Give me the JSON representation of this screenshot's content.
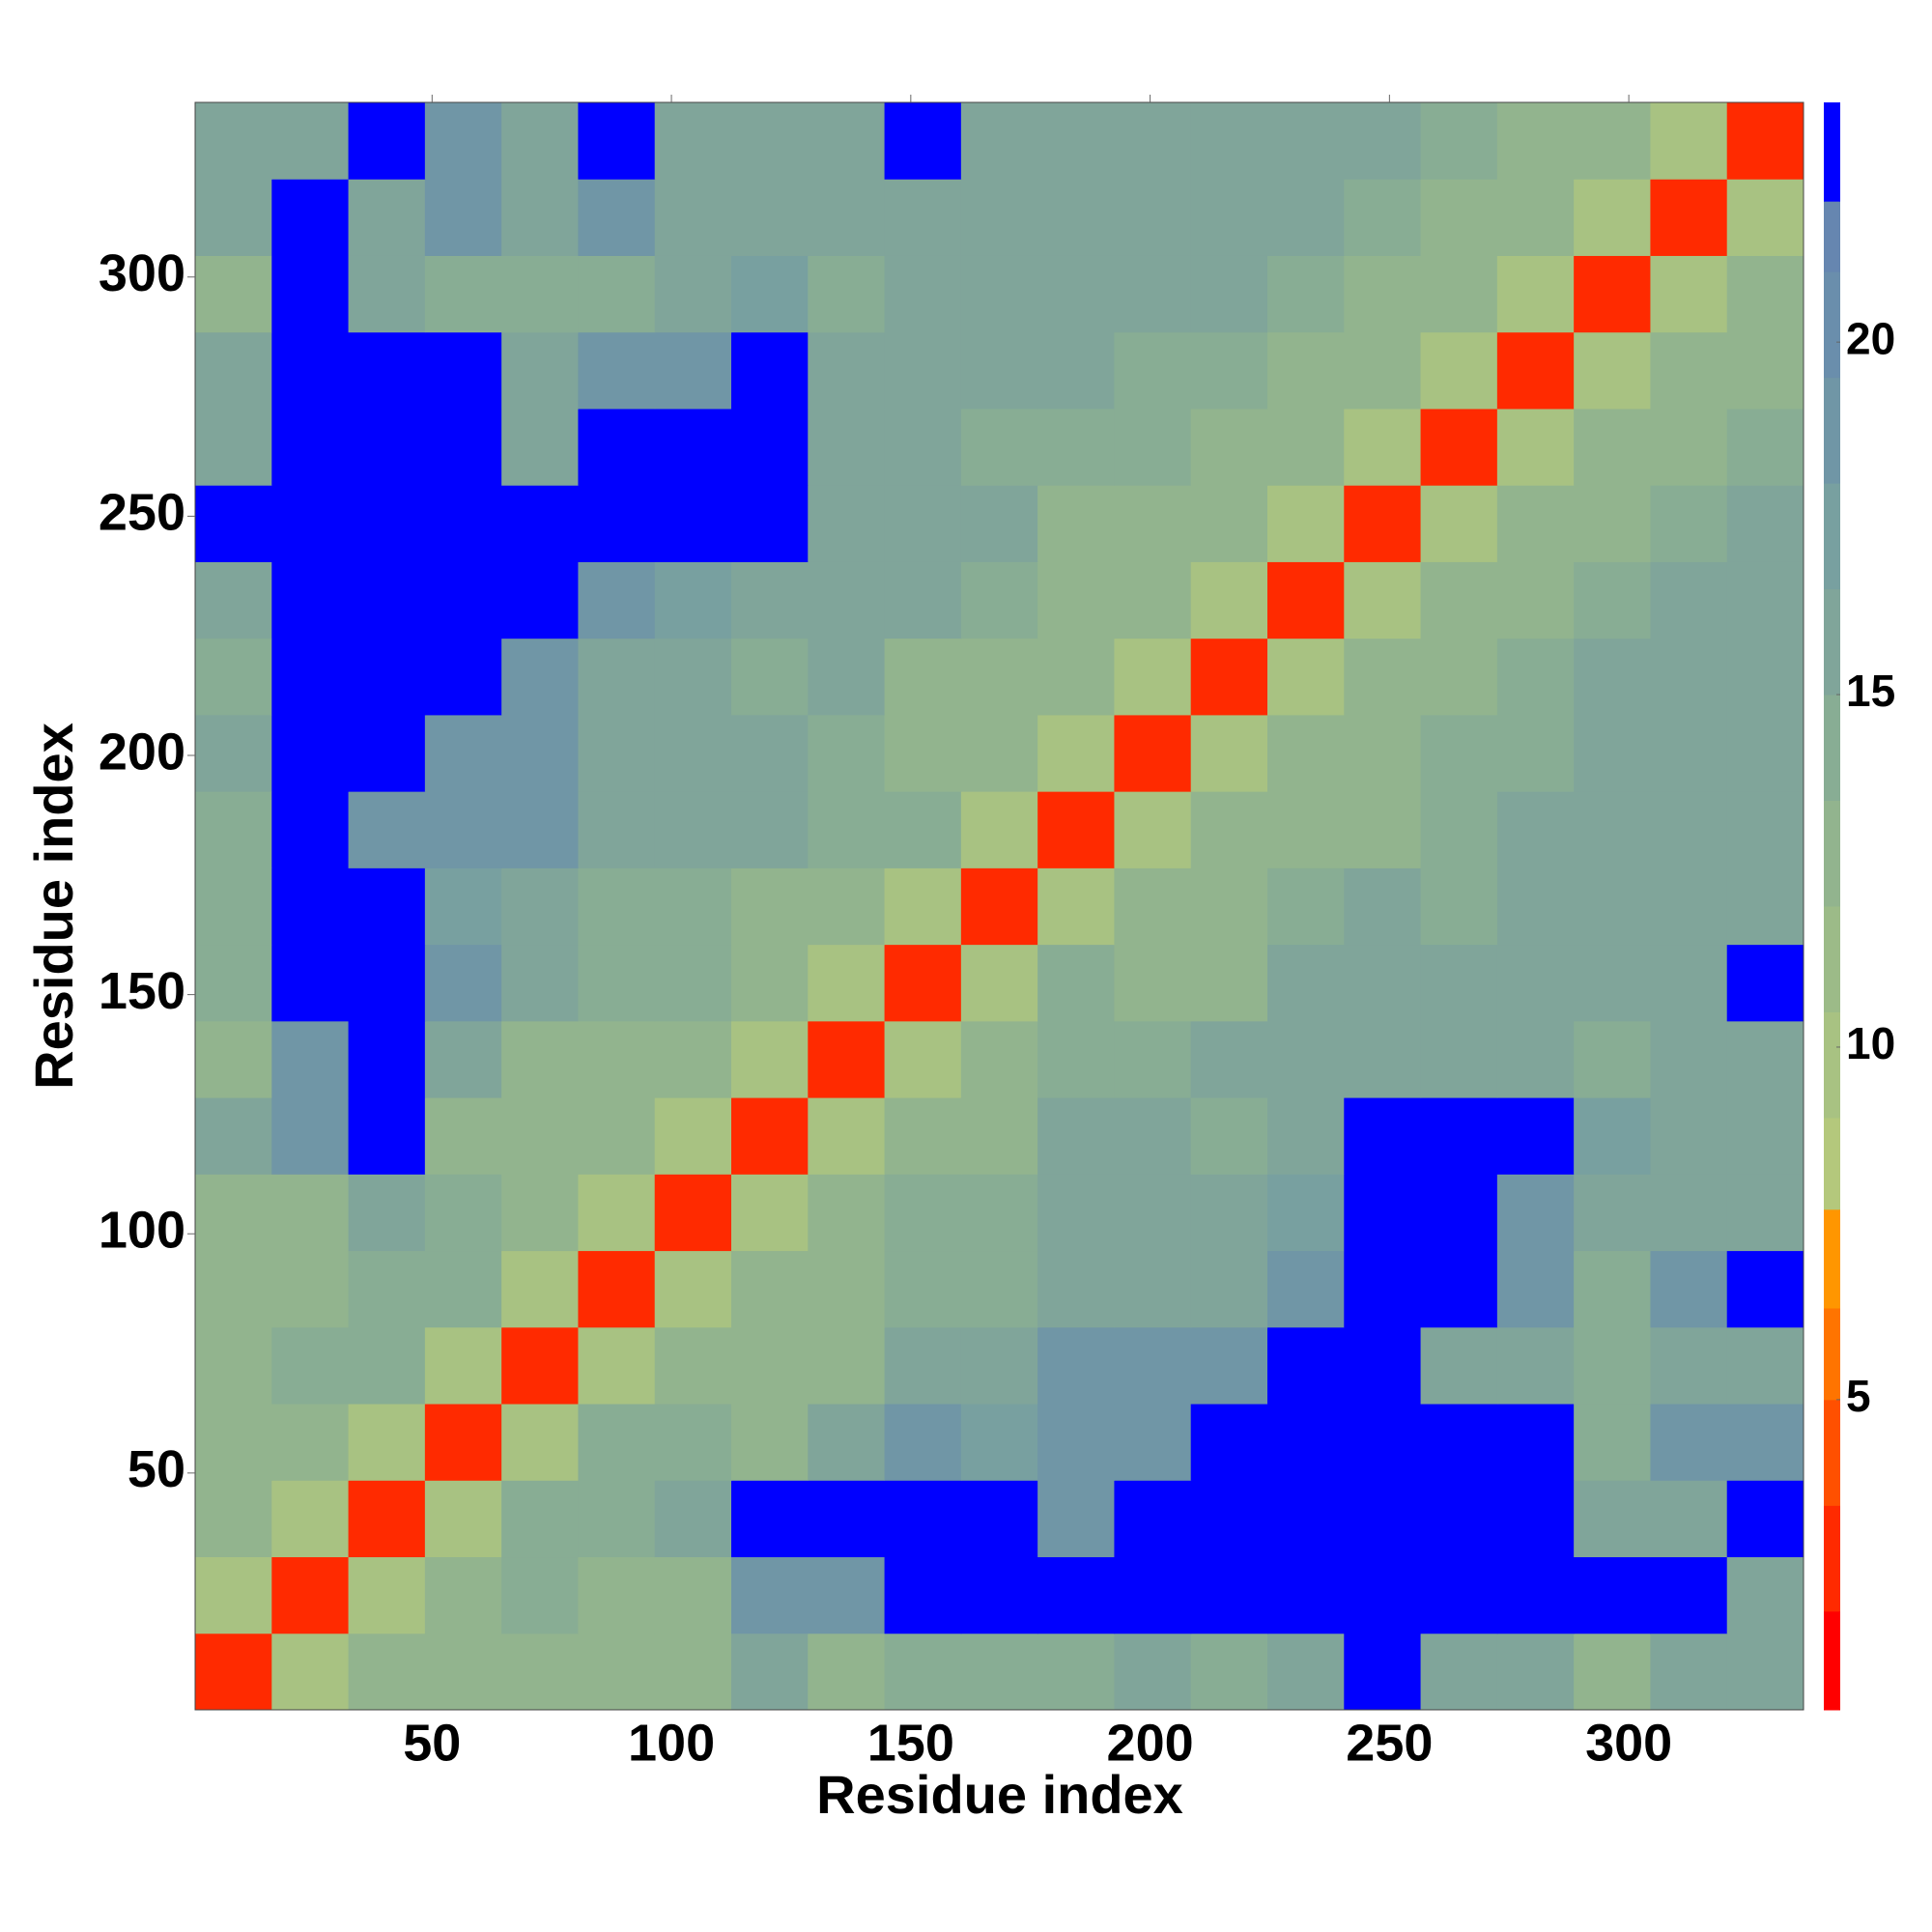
{
  "chart_data": {
    "type": "heatmap",
    "xlabel": "Residue index",
    "ylabel": "Residue index",
    "xlim": [
      0.5,
      336.5
    ],
    "ylim": [
      0.5,
      336.5
    ],
    "xticks": [
      50,
      100,
      150,
      200,
      250,
      300
    ],
    "yticks": [
      50,
      100,
      150,
      200,
      250,
      300
    ],
    "x_bins": [
      0.5,
      16.5,
      32.5,
      48.5,
      64.5,
      80.5,
      96.5,
      112.5,
      128.5,
      144.5,
      160.5,
      176.5,
      192.5,
      208.5,
      224.5,
      240.5,
      256.5,
      272.5,
      288.5,
      304.5,
      320.5,
      336.5
    ],
    "y_bins": [
      0.5,
      16.5,
      32.5,
      48.5,
      64.5,
      80.5,
      96.5,
      112.5,
      128.5,
      144.5,
      160.5,
      176.5,
      192.5,
      208.5,
      224.5,
      240.5,
      256.5,
      272.5,
      288.5,
      304.5,
      320.5,
      336.5
    ],
    "values": [
      [
        2,
        10,
        12,
        12,
        12,
        12,
        12,
        16,
        13,
        14,
        14,
        14,
        16,
        14,
        16,
        24,
        16,
        16,
        12,
        16,
        15
      ],
      [
        10,
        2,
        9,
        12,
        14,
        12,
        12,
        18,
        18,
        24,
        24,
        24,
        24,
        24,
        24,
        24,
        24,
        24,
        24,
        24,
        16
      ],
      [
        12,
        9,
        2,
        10,
        14,
        14,
        16,
        24,
        24,
        24,
        24,
        18,
        24,
        24,
        24,
        24,
        24,
        24,
        16,
        15,
        24
      ],
      [
        12,
        12,
        10,
        2,
        10,
        14,
        14,
        12,
        16,
        18,
        17,
        18,
        18,
        24,
        24,
        24,
        24,
        24,
        14,
        18,
        18
      ],
      [
        12,
        14,
        14,
        10,
        2,
        10,
        12,
        12,
        13,
        15,
        15,
        18,
        18,
        18,
        24,
        24,
        16,
        16,
        14,
        15,
        16
      ],
      [
        12,
        12,
        14,
        14,
        10,
        2,
        10,
        12,
        12,
        14,
        14,
        16,
        16,
        15,
        18,
        24,
        24,
        18,
        14,
        18,
        24
      ],
      [
        12,
        12,
        16,
        14,
        12,
        10,
        2,
        10,
        12,
        14,
        14,
        16,
        16,
        15,
        17,
        24,
        24,
        18,
        15,
        16,
        15
      ],
      [
        16,
        18,
        24,
        12,
        12,
        12,
        10,
        2,
        10,
        12,
        13,
        15,
        15,
        14,
        16,
        24,
        24,
        24,
        17,
        16,
        16
      ],
      [
        13,
        18,
        24,
        16,
        13,
        12,
        12,
        10,
        2,
        10,
        12,
        14,
        14,
        15,
        16,
        15,
        16,
        15,
        14,
        15,
        15
      ],
      [
        14,
        24,
        24,
        18,
        15,
        14,
        14,
        12,
        10,
        2,
        10,
        14,
        13,
        13,
        15,
        15,
        15,
        16,
        16,
        16,
        24
      ],
      [
        14,
        24,
        24,
        17,
        15,
        14,
        14,
        13,
        12,
        10,
        2,
        10,
        13,
        13,
        14,
        15,
        14,
        16,
        15,
        15,
        15
      ],
      [
        14,
        24,
        18,
        18,
        18,
        16,
        16,
        15,
        14,
        14,
        10,
        2,
        10,
        12,
        13,
        13,
        14,
        16,
        16,
        16,
        15
      ],
      [
        16,
        24,
        24,
        18,
        18,
        16,
        16,
        15,
        14,
        13,
        13,
        10,
        2,
        10,
        12,
        12,
        14,
        14,
        15,
        16,
        16
      ],
      [
        14,
        24,
        24,
        24,
        18,
        15,
        15,
        14,
        15,
        13,
        13,
        12,
        10,
        2,
        10,
        12,
        13,
        14,
        15,
        16,
        16
      ],
      [
        16,
        24,
        24,
        24,
        24,
        18,
        17,
        16,
        16,
        15,
        14,
        13,
        12,
        10,
        2,
        10,
        12,
        13,
        14,
        15,
        16
      ],
      [
        24,
        24,
        24,
        24,
        24,
        24,
        24,
        24,
        15,
        15,
        15,
        13,
        12,
        12,
        10,
        2,
        10,
        12,
        13,
        14,
        15
      ],
      [
        16,
        24,
        24,
        24,
        16,
        24,
        24,
        24,
        16,
        15,
        14,
        14,
        14,
        13,
        12,
        10,
        2,
        10,
        12,
        13,
        14
      ],
      [
        16,
        24,
        24,
        24,
        16,
        18,
        18,
        24,
        15,
        16,
        16,
        16,
        14,
        14,
        13,
        12,
        10,
        2,
        10,
        12,
        12
      ],
      [
        12,
        24,
        16,
        14,
        14,
        14,
        15,
        17,
        14,
        16,
        15,
        16,
        15,
        15,
        14,
        13,
        12,
        10,
        2,
        10,
        12
      ],
      [
        16,
        24,
        15,
        18,
        15,
        18,
        16,
        16,
        15,
        16,
        15,
        16,
        16,
        16,
        15,
        14,
        13,
        12,
        10,
        2,
        10
      ],
      [
        15,
        16,
        24,
        18,
        16,
        24,
        15,
        16,
        15,
        24,
        15,
        15,
        16,
        16,
        16,
        15,
        14,
        12,
        12,
        10,
        2
      ]
    ],
    "colorbar": {
      "levels": [
        0.6,
        2,
        3.5,
        5,
        6.3,
        7.7,
        9,
        10.5,
        12,
        13.5,
        15,
        16.5,
        18,
        19.5,
        21,
        22,
        23.4
      ],
      "colors": [
        "#ff0000",
        "#ff2a00",
        "#ff5000",
        "#ff7400",
        "#ff9600",
        "#b4c87c",
        "#a8c282",
        "#9cbb88",
        "#92b48e",
        "#88ad94",
        "#80a59a",
        "#78a0a0",
        "#7096a6",
        "#6a8eac",
        "#6686b0",
        "#0000ff"
      ],
      "zticks": [
        5,
        10,
        15,
        20
      ]
    }
  }
}
